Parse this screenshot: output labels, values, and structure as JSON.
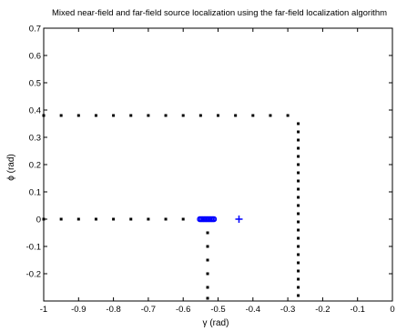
{
  "chart_data": {
    "type": "scatter",
    "title": "Mixed near-field and far-field source localization using the far-field localization algorithm",
    "xlabel": "γ (rad)",
    "ylabel": "ϕ (rad)",
    "xlim": [
      -1,
      0
    ],
    "ylim": [
      -0.3,
      0.7
    ],
    "xticks": [
      "-1",
      "-0.9",
      "-0.8",
      "-0.7",
      "-0.6",
      "-0.5",
      "-0.4",
      "-0.3",
      "-0.2",
      "-0.1",
      "0"
    ],
    "yticks": [
      "-0.2",
      "-0.1",
      "0",
      "0.1",
      "0.2",
      "0.3",
      "0.4",
      "0.5",
      "0.6",
      "0.7"
    ],
    "grid": false,
    "colors": {
      "dots": "#000000",
      "cluster": "#0000ff",
      "plus": "#0000ff"
    },
    "series": [
      {
        "marker": "dot",
        "points": [
          [
            -1.0,
            0.38
          ],
          [
            -0.95,
            0.38
          ],
          [
            -0.9,
            0.38
          ],
          [
            -0.85,
            0.38
          ],
          [
            -0.8,
            0.38
          ],
          [
            -0.75,
            0.38
          ],
          [
            -0.7,
            0.38
          ],
          [
            -0.65,
            0.38
          ],
          [
            -0.6,
            0.38
          ],
          [
            -0.55,
            0.38
          ],
          [
            -0.5,
            0.38
          ],
          [
            -0.45,
            0.38
          ],
          [
            -0.4,
            0.38
          ],
          [
            -0.35,
            0.38
          ],
          [
            -0.3,
            0.38
          ],
          [
            -0.27,
            0.35
          ],
          [
            -0.27,
            0.32
          ],
          [
            -0.27,
            0.29
          ],
          [
            -0.27,
            0.26
          ],
          [
            -0.27,
            0.23
          ],
          [
            -0.27,
            0.2
          ],
          [
            -0.27,
            0.17
          ],
          [
            -0.27,
            0.14
          ],
          [
            -0.27,
            0.11
          ],
          [
            -0.27,
            0.08
          ],
          [
            -0.27,
            0.05
          ],
          [
            -0.27,
            0.02
          ],
          [
            -0.27,
            -0.01
          ],
          [
            -0.27,
            -0.04
          ],
          [
            -0.27,
            -0.07
          ],
          [
            -0.27,
            -0.1
          ],
          [
            -0.27,
            -0.13
          ],
          [
            -0.27,
            -0.16
          ],
          [
            -0.27,
            -0.19
          ],
          [
            -0.27,
            -0.22
          ],
          [
            -0.27,
            -0.25
          ],
          [
            -0.27,
            -0.28
          ],
          [
            -1.0,
            0.0
          ],
          [
            -0.95,
            0.0
          ],
          [
            -0.9,
            0.0
          ],
          [
            -0.85,
            0.0
          ],
          [
            -0.8,
            0.0
          ],
          [
            -0.75,
            0.0
          ],
          [
            -0.7,
            0.0
          ],
          [
            -0.65,
            0.0
          ],
          [
            -0.6,
            0.0
          ],
          [
            -0.53,
            -0.05
          ],
          [
            -0.53,
            -0.1
          ],
          [
            -0.53,
            -0.15
          ],
          [
            -0.53,
            -0.2
          ],
          [
            -0.53,
            -0.25
          ],
          [
            -0.53,
            -0.29
          ]
        ]
      },
      {
        "marker": "circle",
        "points": [
          [
            -0.552,
            0.0
          ],
          [
            -0.548,
            0.0
          ],
          [
            -0.544,
            0.0
          ],
          [
            -0.54,
            0.0
          ],
          [
            -0.536,
            0.0
          ],
          [
            -0.532,
            0.0
          ],
          [
            -0.528,
            0.0
          ],
          [
            -0.524,
            0.0
          ],
          [
            -0.52,
            0.0
          ],
          [
            -0.516,
            0.0
          ],
          [
            -0.512,
            0.0
          ]
        ]
      },
      {
        "marker": "plus",
        "points": [
          [
            -0.44,
            0.0
          ]
        ]
      }
    ]
  }
}
